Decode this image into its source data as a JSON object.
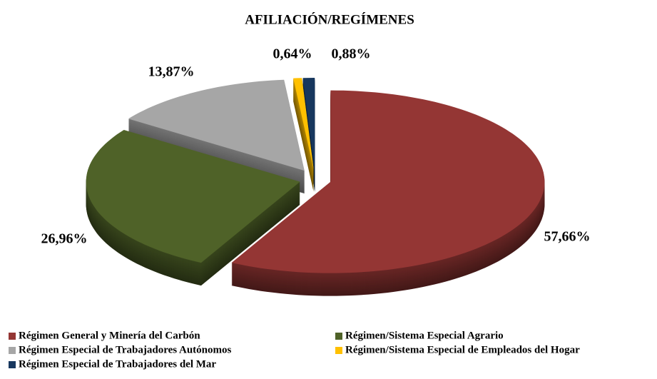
{
  "chart_data": {
    "type": "pie3d",
    "title": "AFILIACIÓN/REGÍMENES",
    "categories": [
      "Régimen General y Minería del Carbón",
      "Régimen/Sistema Especial Agrario",
      "Régimen Especial de Trabajadores Autónomos",
      "Régimen/Sistema Especial de Empleados del Hogar",
      "Régimen Especial de Trabajadores del Mar"
    ],
    "values": [
      57.66,
      26.96,
      13.87,
      0.64,
      0.88
    ],
    "value_labels": [
      "57,66%",
      "26,96%",
      "13,87%",
      "0,64%",
      "0,88%"
    ],
    "colors": [
      "#943634",
      "#4f6228",
      "#a6a6a6",
      "#ffc000",
      "#17375e"
    ],
    "legend": "bottom"
  }
}
